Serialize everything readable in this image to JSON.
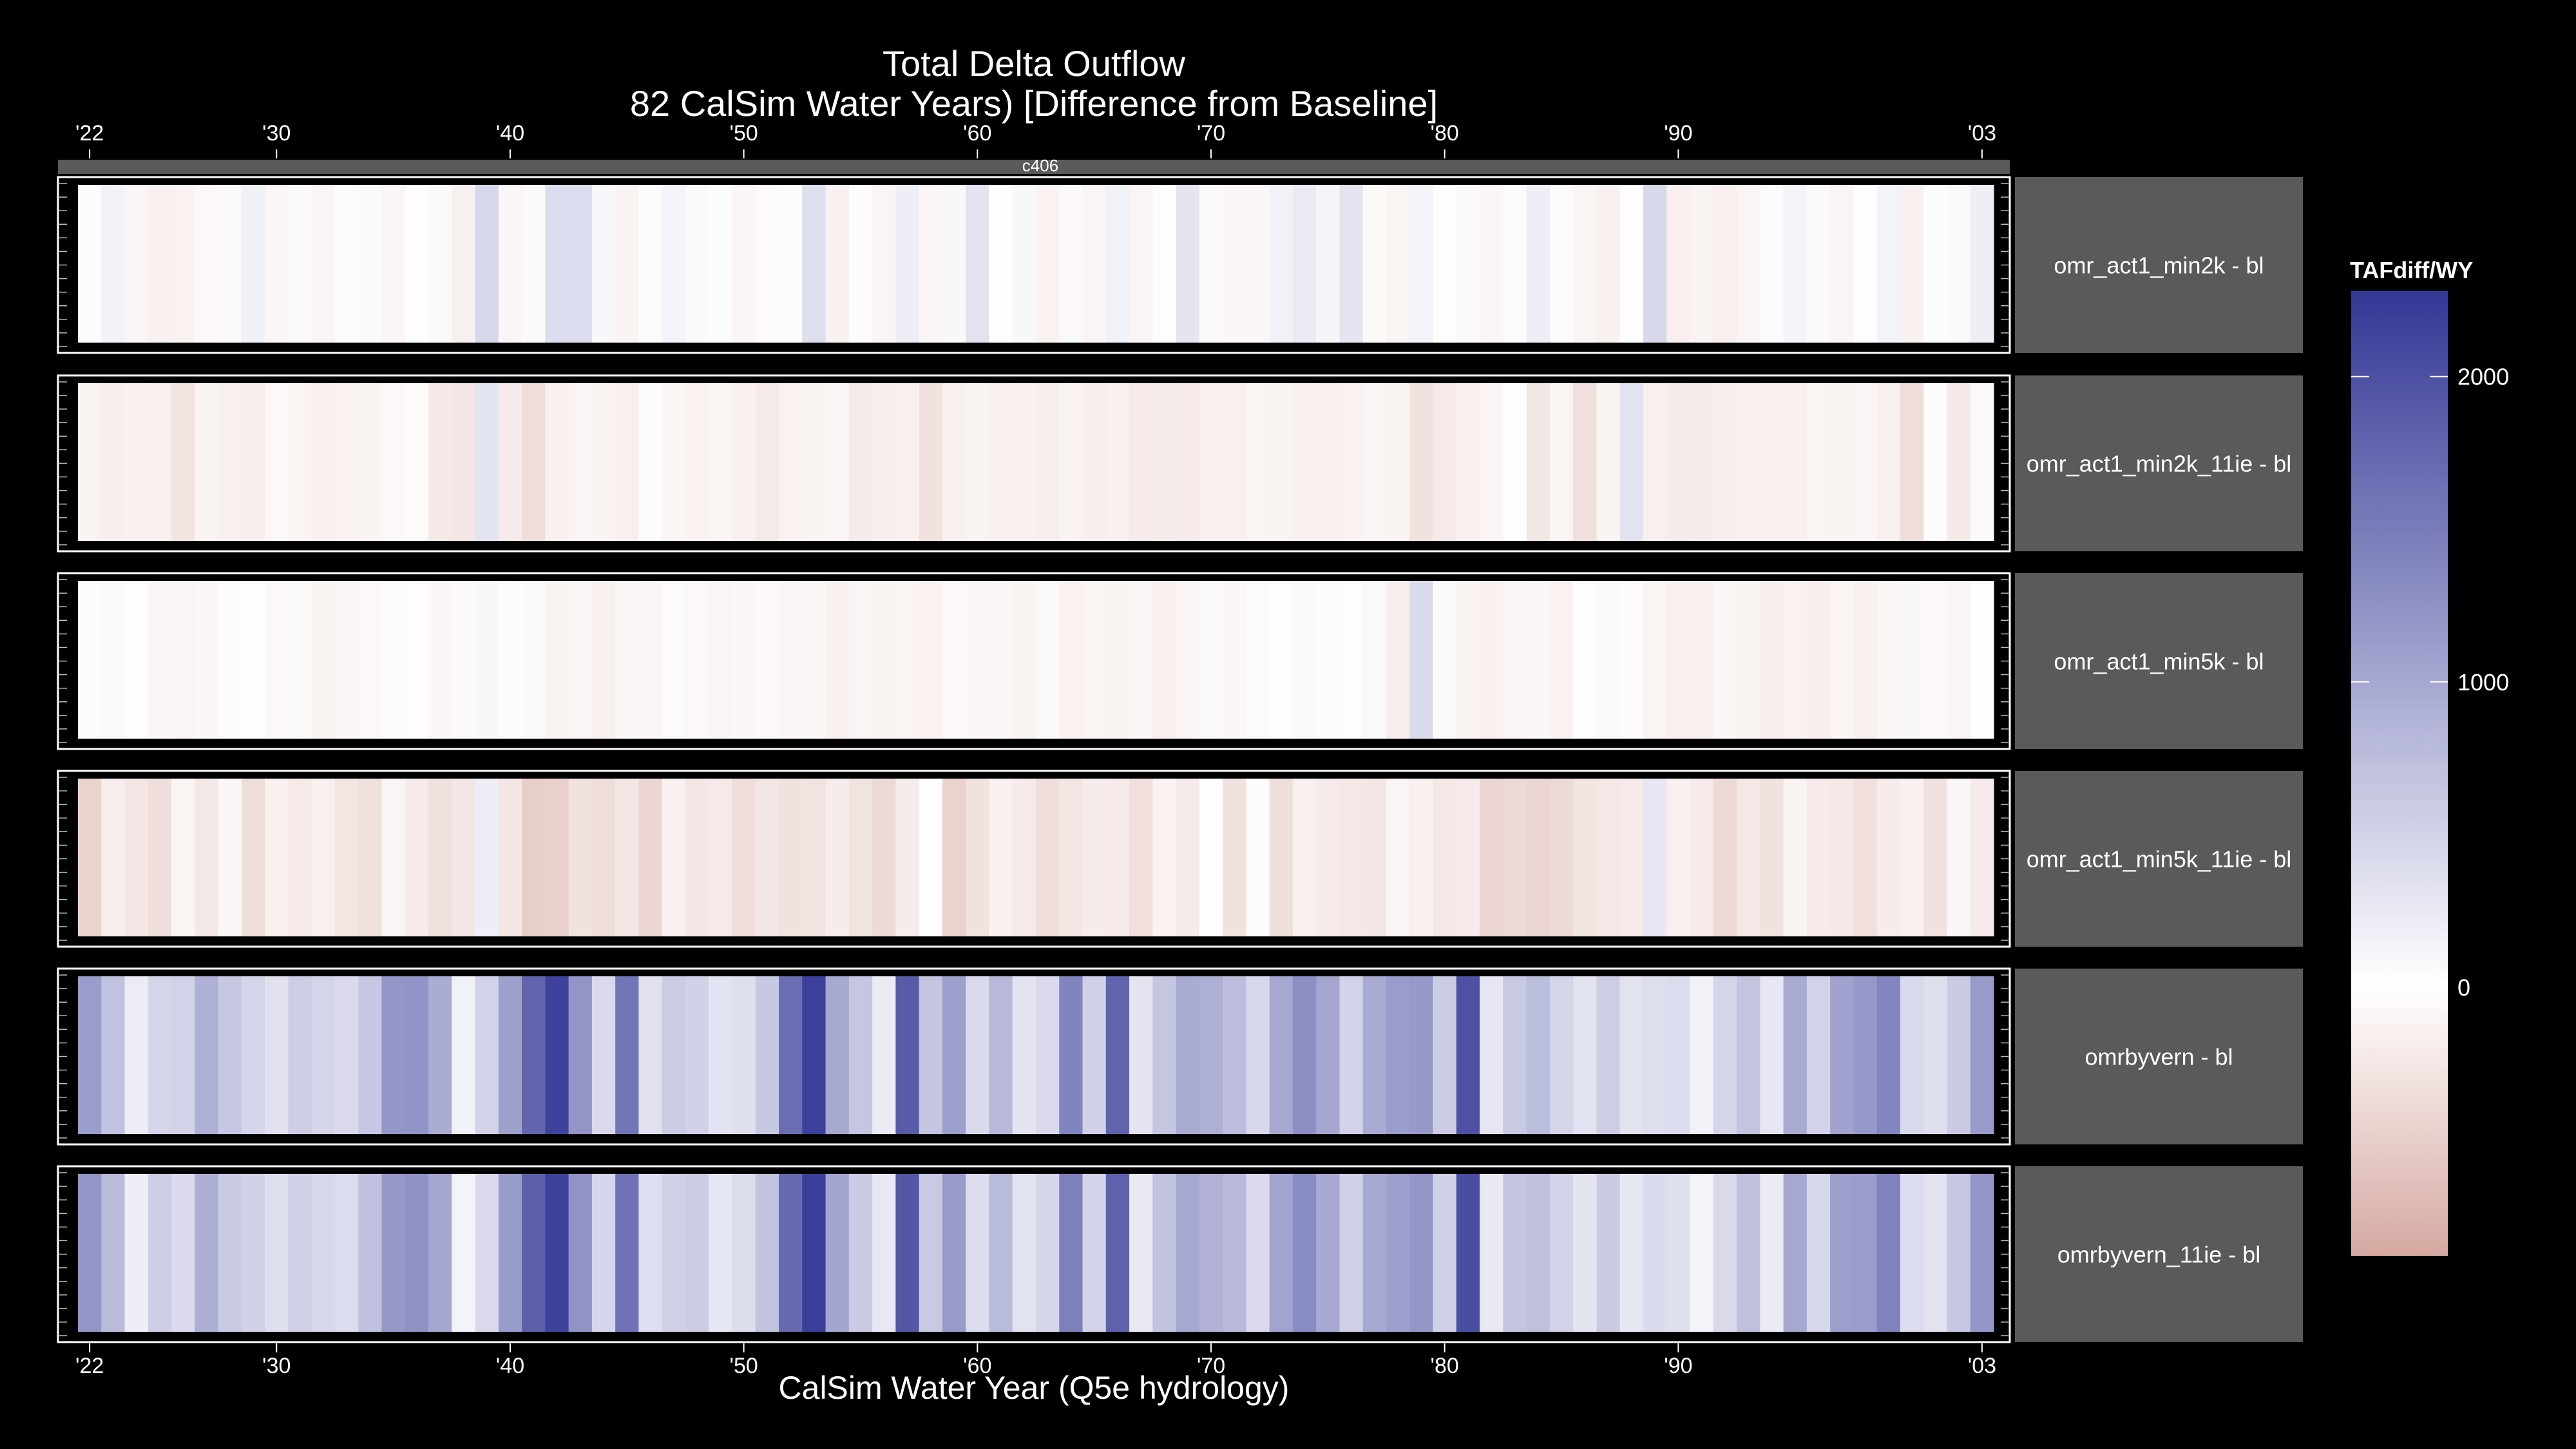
{
  "chart_data": {
    "type": "heatmap",
    "title": "Total Delta Outflow",
    "subtitle": "82 CalSim Water Years) [Difference from Baseline]",
    "xlabel": "CalSim Water Year (Q5e hydrology)",
    "ylabel": "",
    "strip_label": "c406",
    "x_tick_labels": [
      "'22",
      "'30",
      "'40",
      "'50",
      "'60",
      "'70",
      "'80",
      "'90",
      "'03"
    ],
    "x_tick_years": [
      1922,
      1930,
      1940,
      1950,
      1960,
      1970,
      1980,
      1990,
      2003
    ],
    "xlim": [
      1921.5,
      2003.5
    ],
    "years_start": 1922,
    "years_count": 82,
    "legend": {
      "title": "TAFdiff/WY",
      "position": "right",
      "ticks": [
        2000,
        1000,
        0
      ],
      "tick_labels": [
        "2000",
        "1000",
        "0"
      ],
      "range": [
        -880,
        2280
      ],
      "colors": {
        "low": "#d6a9a2",
        "mid": "#ffffff",
        "high": "#343896"
      }
    },
    "grid": false,
    "series": [
      {
        "name": "omr_act1_min2k - bl",
        "values": [
          40,
          150,
          -90,
          -140,
          -130,
          -70,
          -60,
          170,
          -90,
          -60,
          -100,
          -40,
          60,
          -90,
          20,
          -60,
          -150,
          460,
          -90,
          -60,
          400,
          400,
          80,
          -120,
          -40,
          140,
          -60,
          40,
          -90,
          -50,
          40,
          380,
          -140,
          -40,
          -100,
          210,
          -90,
          80,
          320,
          -20,
          80,
          -130,
          60,
          -100,
          160,
          -100,
          -20,
          300,
          -60,
          -80,
          -80,
          160,
          240,
          120,
          300,
          -60,
          -110,
          140,
          -20,
          60,
          -90,
          -40,
          200,
          -50,
          -100,
          -140,
          20,
          450,
          -160,
          -120,
          -160,
          -100,
          -40,
          120,
          -60,
          -100,
          -20,
          140,
          -140,
          40,
          -60,
          200
        ]
      },
      {
        "name": "omr_act1_min2k_11ie - bl",
        "values": [
          -120,
          -170,
          -140,
          -160,
          -280,
          -120,
          -140,
          -170,
          -70,
          -110,
          -160,
          -130,
          -120,
          -70,
          -50,
          -230,
          -260,
          310,
          -200,
          -350,
          -140,
          -100,
          -120,
          -160,
          -40,
          -90,
          -130,
          -110,
          -160,
          -220,
          -130,
          -120,
          -100,
          -200,
          -180,
          -160,
          -300,
          -140,
          -120,
          -150,
          -140,
          -180,
          -120,
          -170,
          -140,
          -200,
          -190,
          -200,
          -160,
          -150,
          -110,
          -120,
          -140,
          -160,
          -130,
          -100,
          -120,
          -300,
          -210,
          -140,
          -100,
          20,
          -250,
          -110,
          -330,
          -120,
          330,
          -150,
          -200,
          -190,
          -180,
          -160,
          -140,
          -140,
          -110,
          -120,
          -100,
          -160,
          -350,
          -40,
          -230,
          70
        ]
      },
      {
        "name": "omr_act1_min5k - bl",
        "values": [
          -40,
          60,
          -30,
          -90,
          -100,
          -80,
          -40,
          -20,
          -70,
          -60,
          -120,
          -90,
          -70,
          -40,
          -30,
          -80,
          -60,
          80,
          -40,
          -60,
          -120,
          -100,
          -140,
          -80,
          -90,
          -50,
          -70,
          -100,
          -80,
          -60,
          -90,
          -80,
          -140,
          -100,
          -120,
          -110,
          -130,
          -70,
          -90,
          -80,
          -120,
          -60,
          -130,
          -110,
          -120,
          -90,
          -150,
          -100,
          -60,
          -80,
          -50,
          -20,
          60,
          -40,
          20,
          70,
          -180,
          410,
          -60,
          -120,
          -140,
          -100,
          -80,
          -130,
          -20,
          -60,
          -40,
          -110,
          -160,
          -140,
          -90,
          -120,
          -170,
          -130,
          -170,
          -90,
          -140,
          -80,
          80,
          -70,
          -100,
          -30
        ]
      },
      {
        "name": "omr_act1_min5k_11ie - bl",
        "values": [
          -450,
          -180,
          -260,
          -340,
          -110,
          -240,
          -80,
          -350,
          -140,
          -220,
          -160,
          -270,
          -330,
          -100,
          -200,
          -320,
          -260,
          200,
          -260,
          -500,
          -480,
          -300,
          -350,
          -250,
          -420,
          -140,
          -260,
          -210,
          -350,
          -250,
          -300,
          -290,
          -190,
          -290,
          -380,
          -190,
          -30,
          -460,
          -300,
          -140,
          -200,
          -340,
          -270,
          -190,
          -200,
          -330,
          -120,
          -200,
          -20,
          -300,
          -40,
          -340,
          -160,
          -200,
          -240,
          -260,
          -100,
          -140,
          -240,
          -200,
          -420,
          -380,
          -420,
          -390,
          -280,
          -240,
          -200,
          280,
          -160,
          -200,
          -380,
          -240,
          -300,
          -120,
          -200,
          -230,
          -330,
          -190,
          -140,
          -300,
          -80,
          -200
        ]
      },
      {
        "name": "omrbyvern - bl",
        "values": [
          1130,
          700,
          220,
          480,
          500,
          900,
          640,
          480,
          340,
          560,
          480,
          420,
          640,
          1200,
          1230,
          950,
          160,
          500,
          1080,
          1770,
          2160,
          1210,
          430,
          1580,
          350,
          590,
          520,
          310,
          360,
          630,
          1670,
          2190,
          990,
          650,
          230,
          1880,
          660,
          1100,
          420,
          800,
          300,
          430,
          1410,
          530,
          1780,
          300,
          650,
          960,
          920,
          740,
          450,
          1000,
          1280,
          1020,
          500,
          960,
          1130,
          1170,
          570,
          1990,
          290,
          620,
          760,
          480,
          330,
          560,
          320,
          370,
          400,
          160,
          480,
          680,
          280,
          960,
          500,
          1060,
          1180,
          1400,
          440,
          360,
          600,
          1160
        ]
      },
      {
        "name": "omrbyvern_11ie - bl",
        "values": [
          1210,
          780,
          190,
          560,
          420,
          930,
          610,
          520,
          380,
          530,
          460,
          400,
          710,
          1180,
          1260,
          1010,
          140,
          430,
          1150,
          1820,
          2170,
          1240,
          470,
          1610,
          380,
          540,
          570,
          280,
          390,
          690,
          1710,
          2200,
          1030,
          600,
          260,
          1930,
          620,
          1160,
          400,
          770,
          330,
          470,
          1450,
          500,
          1810,
          260,
          690,
          1000,
          880,
          790,
          420,
          1050,
          1320,
          980,
          540,
          990,
          1090,
          1200,
          530,
          2030,
          250,
          660,
          720,
          500,
          300,
          600,
          280,
          410,
          360,
          130,
          430,
          720,
          230,
          1000,
          460,
          1110,
          1140,
          1430,
          400,
          320,
          640,
          1190
        ]
      }
    ]
  }
}
